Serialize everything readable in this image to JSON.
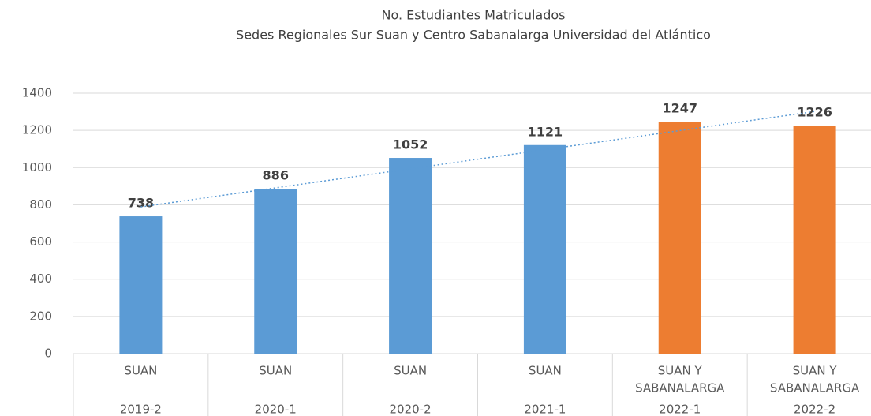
{
  "chart_data": {
    "type": "bar",
    "title": "No. Estudiantes Matriculados",
    "subtitle": "Sedes Regionales Sur Suan y Centro Sabanalarga Universidad del Atlántico",
    "categories": [
      "2019-2",
      "2020-1",
      "2020-2",
      "2021-1",
      "2022-1",
      "2022-2"
    ],
    "groups": [
      [
        "SUAN"
      ],
      [
        "SUAN"
      ],
      [
        "SUAN"
      ],
      [
        "SUAN"
      ],
      [
        "SUAN Y",
        "SABANALARGA"
      ],
      [
        "SUAN Y",
        "SABANALARGA"
      ]
    ],
    "values": [
      738,
      886,
      1052,
      1121,
      1247,
      1226
    ],
    "colors": [
      "#5b9bd5",
      "#5b9bd5",
      "#5b9bd5",
      "#5b9bd5",
      "#ed7d31",
      "#ed7d31"
    ],
    "ylim": [
      0,
      1400
    ],
    "yticks": [
      0,
      200,
      400,
      600,
      800,
      1000,
      1200,
      1400
    ],
    "grid": true,
    "trendline": "linear",
    "trendline_color": "#5b9bd5"
  }
}
